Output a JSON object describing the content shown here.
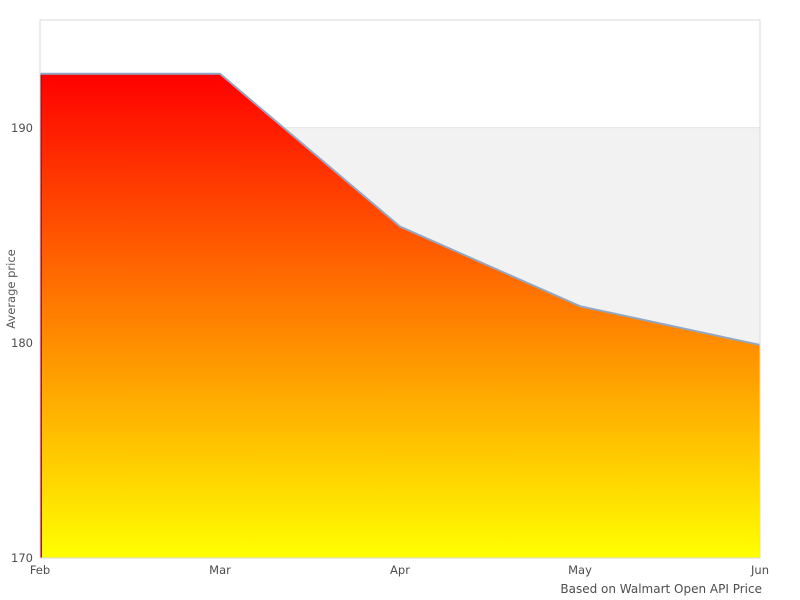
{
  "chart_data": {
    "type": "area",
    "title": "",
    "categories": [
      "Feb",
      "Mar",
      "Apr",
      "May",
      "Jun"
    ],
    "values": [
      192.5,
      192.5,
      185.4,
      181.7,
      179.9
    ],
    "series_name": "Average price",
    "xlabel": "",
    "ylabel": "Average price",
    "ylim": [
      170,
      195
    ],
    "y_ticks": [
      170,
      180,
      190
    ],
    "y_tick_labels": [
      "190",
      "180",
      "170"
    ],
    "grid": "horizontal-only",
    "legend": "none",
    "plot_band": {
      "from": 180,
      "to": 190,
      "color": "#f2f2f2"
    },
    "credits": "Based on Walmart Open API Price",
    "colors": {
      "area_gradient_top": "#ff0000",
      "area_gradient_bottom": "#ffff00",
      "line": "#8fa8c8",
      "area_left_edge": "#dd0000",
      "grid_line": "#e6e6e6",
      "plot_border": "#d9d9d9",
      "tick_text": "#4d4d4d"
    }
  }
}
